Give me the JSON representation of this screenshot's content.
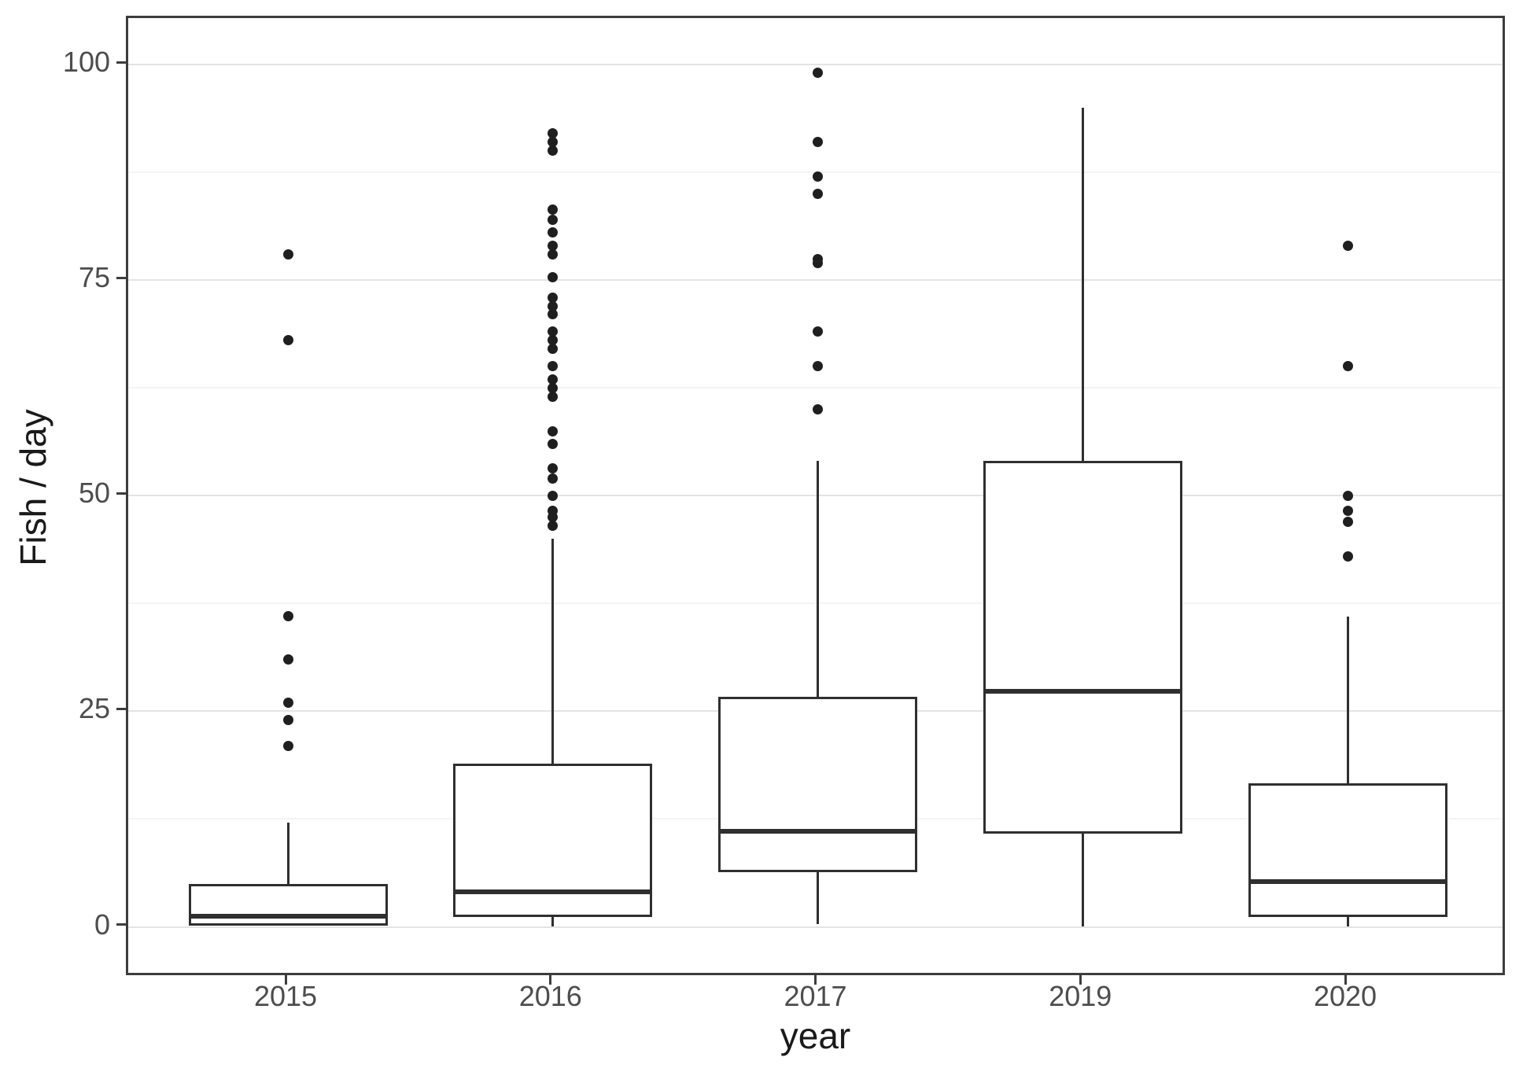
{
  "figure": {
    "background": "#ffffff",
    "panel_border_color": "#3d3d3d",
    "major_grid_color": "#e4e4e4",
    "minor_grid_color": "#f4f4f4",
    "box_line_color": "#2f2f2f",
    "outlier_color": "#1f1f1f",
    "tick_label_color": "#4d4d4d",
    "axis_title_color": "#1a1a1a"
  },
  "chart_data": {
    "type": "boxplot",
    "title": "",
    "xlabel": "year",
    "ylabel": "Fish / day",
    "categories": [
      "2015",
      "2016",
      "2017",
      "2019",
      "2020"
    ],
    "y_ticks": [
      0,
      25,
      50,
      75,
      100
    ],
    "y_tick_labels": [
      "0",
      "25",
      "50",
      "75",
      "100"
    ],
    "minor_gridlines": [
      12.5,
      37.5,
      62.5,
      87.5
    ],
    "ylim": [
      0,
      100
    ],
    "grid": "major and minor horizontal gridlines, white panel, dark panel border",
    "legend": "none",
    "boxes": [
      {
        "category": "2015",
        "whisker_low": 0.1,
        "q1": 0.1,
        "median": 1.2,
        "q3": 5.0,
        "whisker_high": 12.1,
        "outliers": [
          21,
          24,
          26,
          31,
          36,
          68,
          78
        ]
      },
      {
        "category": "2016",
        "whisker_low": 0,
        "q1": 1.1,
        "median": 4.1,
        "q3": 18.9,
        "whisker_high": 45,
        "outliers": [
          46.5,
          47.5,
          48.2,
          50,
          52,
          53.2,
          56,
          57.5,
          61.5,
          62.5,
          63.5,
          65,
          67,
          68,
          69,
          71,
          72,
          73,
          75.3,
          78,
          79,
          80.5,
          82,
          83.2,
          90,
          91,
          92
        ]
      },
      {
        "category": "2017",
        "whisker_low": 0.3,
        "q1": 6.3,
        "median": 11.1,
        "q3": 26.7,
        "whisker_high": 54,
        "outliers": [
          60,
          65,
          69,
          77,
          77.4,
          85,
          87,
          91,
          99
        ]
      },
      {
        "category": "2019",
        "whisker_low": 0,
        "q1": 10.8,
        "median": 27.3,
        "q3": 54,
        "whisker_high": 95,
        "outliers": []
      },
      {
        "category": "2020",
        "whisker_low": 0,
        "q1": 1.1,
        "median": 5.2,
        "q3": 16.6,
        "whisker_high": 36,
        "outliers": [
          43,
          47,
          48.2,
          50,
          65,
          79
        ]
      }
    ]
  }
}
